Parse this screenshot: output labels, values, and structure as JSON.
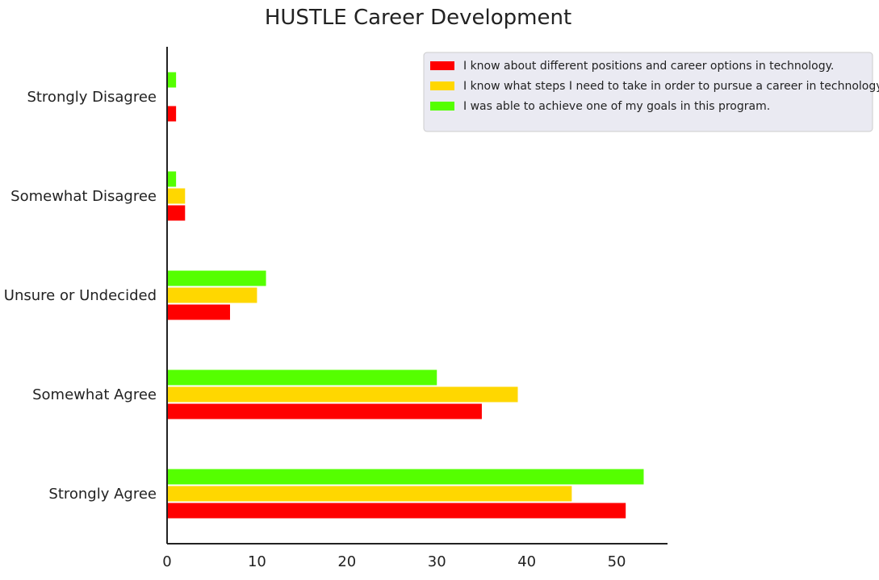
{
  "chart_data": {
    "type": "bar",
    "orientation": "horizontal",
    "title": "HUSTLE Career Development",
    "xlabel": "",
    "ylabel": "",
    "categories": [
      "Strongly Agree",
      "Somewhat Agree",
      "Unsure or Undecided",
      "Somewhat Disagree",
      "Strongly Disagree"
    ],
    "series": [
      {
        "name": "I know about different positions and career options in technology.",
        "color": "#ff0000",
        "values": [
          51,
          35,
          7,
          2,
          1
        ]
      },
      {
        "name": "I know what steps I need to take in order to pursue a career in technology.",
        "color": "#ffd700",
        "values": [
          45,
          39,
          10,
          2,
          0
        ]
      },
      {
        "name": "I was able to achieve one of my goals in this program.",
        "color": "#55ff00",
        "values": [
          53,
          30,
          11,
          1,
          1
        ]
      }
    ],
    "xlim": [
      0,
      55.65
    ],
    "xticks": [
      0,
      10,
      20,
      30,
      40,
      50
    ],
    "grid": false,
    "legend_position": "top-right"
  }
}
